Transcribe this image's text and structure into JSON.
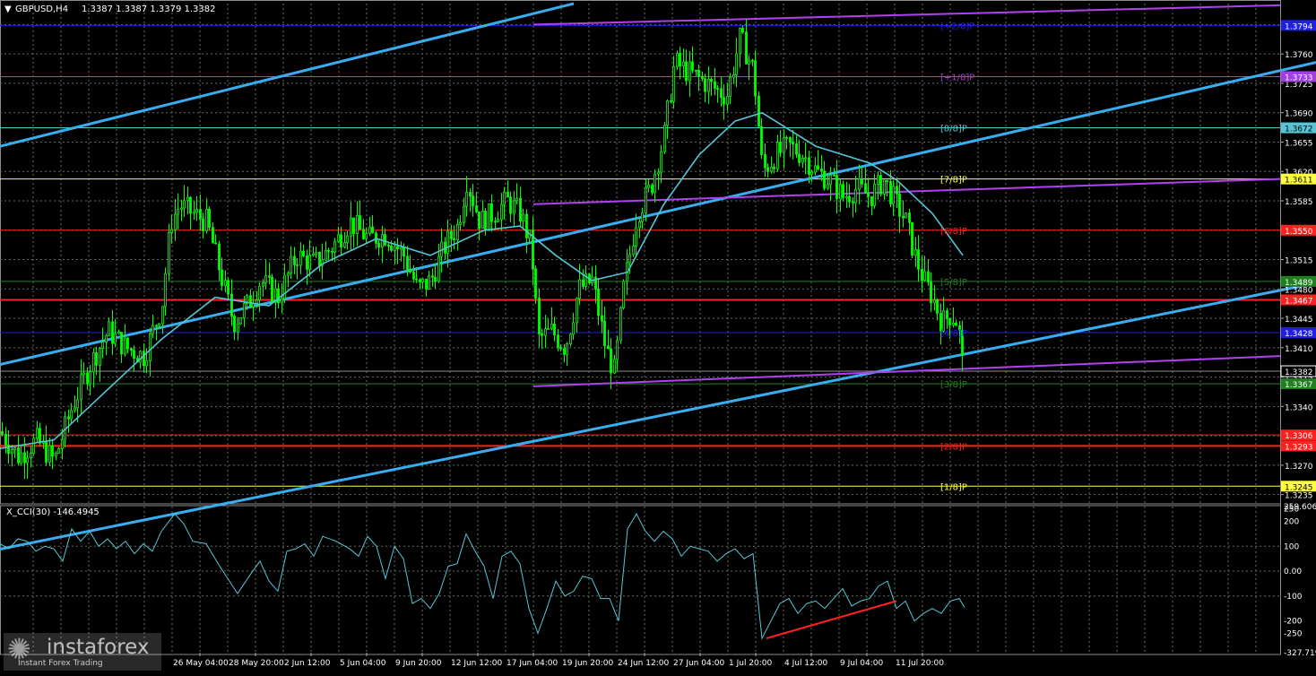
{
  "header": {
    "symbol": "GBPUSD,H4",
    "ohlc": "1.3387 1.3387 1.3379 1.3382"
  },
  "indicator": {
    "label": "X_CCI(30) -146.4945",
    "scale_labels": [
      "259.6065",
      "250",
      "200",
      "100",
      "0.00",
      "-100",
      "-200",
      "-250",
      "-327.7193"
    ]
  },
  "watermark": {
    "name": "instaforex",
    "tagline": "Instant Forex Trading"
  },
  "colors": {
    "background": "#000000",
    "grid": "#607060",
    "candles": "#00ff00",
    "moving_average": "#56c6d6",
    "trend_channel": "#38aef0",
    "pitchfork": "#b040f0",
    "cci_line": "#56c6d6",
    "divergence": "#ff2020"
  },
  "chart_data": [
    {
      "type": "candlestick",
      "symbol": "GBPUSD",
      "timeframe": "H4",
      "x_tick_labels": [
        "26 May 04:00",
        "28 May 20:00",
        "2 Jun 12:00",
        "5 Jun 04:00",
        "9 Jun 20:00",
        "12 Jun 12:00",
        "17 Jun 04:00",
        "19 Jun 20:00",
        "24 Jun 12:00",
        "27 Jun 04:00",
        "1 Jul 20:00",
        "4 Jul 12:00",
        "9 Jul 04:00",
        "11 Jul 20:00"
      ],
      "y_tick_labels": [
        "1.3795",
        "1.3760",
        "1.3725",
        "1.3690",
        "1.3655",
        "1.3620",
        "1.3585",
        "1.3550",
        "1.3515",
        "1.3480",
        "1.3445",
        "1.3410",
        "1.3375",
        "1.3340",
        "1.3305",
        "1.3270",
        "1.3235"
      ],
      "ylim": [
        1.3225,
        1.382
      ],
      "grid": true,
      "close_path": [
        [
          0,
          1.331
        ],
        [
          20,
          1.328
        ],
        [
          40,
          1.33
        ],
        [
          60,
          1.3275
        ],
        [
          80,
          1.334
        ],
        [
          100,
          1.339
        ],
        [
          120,
          1.343
        ],
        [
          140,
          1.341
        ],
        [
          160,
          1.34
        ],
        [
          180,
          1.346
        ],
        [
          190,
          1.356
        ],
        [
          200,
          1.358
        ],
        [
          215,
          1.357
        ],
        [
          230,
          1.356
        ],
        [
          245,
          1.35
        ],
        [
          260,
          1.344
        ],
        [
          275,
          1.346
        ],
        [
          290,
          1.349
        ],
        [
          310,
          1.347
        ],
        [
          330,
          1.352
        ],
        [
          350,
          1.351
        ],
        [
          370,
          1.353
        ],
        [
          390,
          1.356
        ],
        [
          410,
          1.354
        ],
        [
          430,
          1.3545
        ],
        [
          450,
          1.352
        ],
        [
          465,
          1.348
        ],
        [
          480,
          1.349
        ],
        [
          495,
          1.353
        ],
        [
          510,
          1.3555
        ],
        [
          520,
          1.361
        ],
        [
          535,
          1.356
        ],
        [
          550,
          1.357
        ],
        [
          565,
          1.3585
        ],
        [
          580,
          1.357
        ],
        [
          592,
          1.353
        ],
        [
          600,
          1.342
        ],
        [
          615,
          1.343
        ],
        [
          630,
          1.341
        ],
        [
          645,
          1.348
        ],
        [
          660,
          1.349
        ],
        [
          675,
          1.341
        ],
        [
          685,
          1.338
        ],
        [
          695,
          1.348
        ],
        [
          710,
          1.357
        ],
        [
          725,
          1.36
        ],
        [
          740,
          1.366
        ],
        [
          752,
          1.375
        ],
        [
          765,
          1.374
        ],
        [
          780,
          1.373
        ],
        [
          795,
          1.372
        ],
        [
          810,
          1.371
        ],
        [
          825,
          1.378
        ],
        [
          840,
          1.374
        ],
        [
          850,
          1.362
        ],
        [
          865,
          1.364
        ],
        [
          880,
          1.365
        ],
        [
          895,
          1.364
        ],
        [
          910,
          1.362
        ],
        [
          925,
          1.361
        ],
        [
          940,
          1.359
        ],
        [
          955,
          1.36
        ],
        [
          970,
          1.359
        ],
        [
          985,
          1.361
        ],
        [
          1000,
          1.358
        ],
        [
          1010,
          1.356
        ],
        [
          1020,
          1.352
        ],
        [
          1030,
          1.349
        ],
        [
          1040,
          1.347
        ],
        [
          1050,
          1.344
        ],
        [
          1060,
          1.345
        ],
        [
          1068,
          1.344
        ],
        [
          1074,
          1.3382
        ]
      ],
      "moving_average_path": [
        [
          0,
          1.329
        ],
        [
          60,
          1.33
        ],
        [
          120,
          1.336
        ],
        [
          180,
          1.342
        ],
        [
          240,
          1.347
        ],
        [
          300,
          1.346
        ],
        [
          360,
          1.351
        ],
        [
          420,
          1.354
        ],
        [
          480,
          1.352
        ],
        [
          540,
          1.355
        ],
        [
          580,
          1.3555
        ],
        [
          620,
          1.352
        ],
        [
          660,
          1.349
        ],
        [
          700,
          1.35
        ],
        [
          740,
          1.358
        ],
        [
          780,
          1.364
        ],
        [
          820,
          1.368
        ],
        [
          850,
          1.369
        ],
        [
          880,
          1.367
        ],
        [
          910,
          1.365
        ],
        [
          940,
          1.364
        ],
        [
          970,
          1.363
        ],
        [
          1000,
          1.361
        ],
        [
          1040,
          1.357
        ],
        [
          1074,
          1.352
        ]
      ],
      "trend_lines": [
        {
          "from": [
            0,
            1.365
          ],
          "to": [
            640,
            1.382
          ]
        },
        {
          "from": [
            0,
            1.339
          ],
          "to": [
            1468,
            1.375
          ]
        },
        {
          "from": [
            0,
            1.317
          ],
          "to": [
            1468,
            1.3487
          ]
        }
      ],
      "pitchfork_lines": [
        {
          "from": [
            595,
            1.3795
          ],
          "to": [
            1428,
            1.3818
          ]
        },
        {
          "from": [
            595,
            1.3581
          ],
          "to": [
            1428,
            1.3611
          ]
        },
        {
          "from": [
            595,
            1.3364
          ],
          "to": [
            1428,
            1.34
          ]
        }
      ],
      "horizontal_levels": [
        {
          "value": 1.3794,
          "label": "1.3794",
          "murrey": "[+2/8]P",
          "color": "#2020e0"
        },
        {
          "value": 1.3733,
          "label": "1.3733",
          "murrey": "[+1/8]P",
          "color": "#a040e0"
        },
        {
          "value": 1.3672,
          "label": "1.3672",
          "murrey": "[8/8]P",
          "color": "#56c6d6"
        },
        {
          "value": 1.3611,
          "label": "1.3611",
          "murrey": "[7/8]P",
          "color": "#ffff40"
        },
        {
          "value": 1.355,
          "label": "1.3550",
          "murrey": "[6/8]P",
          "color": "#ff2020"
        },
        {
          "value": 1.3489,
          "label": "1.3489",
          "murrey": "[5/8]P",
          "color": "#208020"
        },
        {
          "value": 1.3467,
          "label": "1.3467",
          "murrey": "",
          "color": "#ff2020"
        },
        {
          "value": 1.3428,
          "label": "1.3428",
          "murrey": "[4/8]P",
          "color": "#2020e0"
        },
        {
          "value": 1.3367,
          "label": "1.3367",
          "murrey": "[3/8]P",
          "color": "#208020"
        },
        {
          "value": 1.3306,
          "label": "1.3306",
          "murrey": "",
          "color": "#ff2020"
        },
        {
          "value": 1.3293,
          "label": "1.3293",
          "murrey": "[2/8]P",
          "color": "#ff2020"
        },
        {
          "value": 1.3245,
          "label": "1.3245",
          "murrey": "[1/8]P",
          "color": "#ffff40"
        }
      ],
      "current_price": 1.3382
    },
    {
      "type": "line",
      "name": "X_CCI(30)",
      "ylim": [
        -327.7193,
        259.6065
      ],
      "y_ticks": [
        259.6065,
        250,
        200,
        100,
        0,
        -100,
        -200,
        -250,
        -327.7193
      ],
      "series": [
        {
          "values": [
            [
              0,
              110
            ],
            [
              10,
              90
            ],
            [
              20,
              130
            ],
            [
              30,
              120
            ],
            [
              40,
              80
            ],
            [
              50,
              100
            ],
            [
              60,
              90
            ],
            [
              70,
              40
            ],
            [
              80,
              170
            ],
            [
              90,
              120
            ],
            [
              100,
              160
            ],
            [
              110,
              100
            ],
            [
              120,
              130
            ],
            [
              130,
              90
            ],
            [
              140,
              120
            ],
            [
              150,
              70
            ],
            [
              160,
              110
            ],
            [
              170,
              80
            ],
            [
              180,
              160
            ],
            [
              195,
              230
            ],
            [
              205,
              190
            ],
            [
              215,
              120
            ],
            [
              230,
              110
            ],
            [
              245,
              20
            ],
            [
              265,
              -90
            ],
            [
              280,
              -10
            ],
            [
              290,
              40
            ],
            [
              300,
              -40
            ],
            [
              310,
              -80
            ],
            [
              320,
              80
            ],
            [
              330,
              90
            ],
            [
              340,
              110
            ],
            [
              350,
              60
            ],
            [
              360,
              140
            ],
            [
              375,
              120
            ],
            [
              390,
              90
            ],
            [
              400,
              60
            ],
            [
              410,
              140
            ],
            [
              420,
              100
            ],
            [
              430,
              -30
            ],
            [
              440,
              100
            ],
            [
              450,
              50
            ],
            [
              460,
              -130
            ],
            [
              470,
              -110
            ],
            [
              480,
              -150
            ],
            [
              490,
              -90
            ],
            [
              500,
              20
            ],
            [
              510,
              30
            ],
            [
              520,
              150
            ],
            [
              530,
              80
            ],
            [
              540,
              20
            ],
            [
              550,
              -110
            ],
            [
              560,
              60
            ],
            [
              570,
              80
            ],
            [
              580,
              30
            ],
            [
              590,
              -150
            ],
            [
              600,
              -250
            ],
            [
              610,
              -150
            ],
            [
              620,
              -40
            ],
            [
              630,
              -100
            ],
            [
              640,
              -80
            ],
            [
              650,
              -20
            ],
            [
              660,
              -30
            ],
            [
              670,
              -110
            ],
            [
              680,
              -110
            ],
            [
              690,
              -200
            ],
            [
              700,
              170
            ],
            [
              710,
              230
            ],
            [
              720,
              160
            ],
            [
              730,
              120
            ],
            [
              740,
              160
            ],
            [
              750,
              130
            ],
            [
              760,
              60
            ],
            [
              770,
              100
            ],
            [
              780,
              90
            ],
            [
              790,
              80
            ],
            [
              800,
              40
            ],
            [
              810,
              70
            ],
            [
              820,
              90
            ],
            [
              830,
              50
            ],
            [
              840,
              70
            ],
            [
              850,
              -270
            ],
            [
              860,
              -200
            ],
            [
              870,
              -130
            ],
            [
              880,
              -110
            ],
            [
              890,
              -170
            ],
            [
              900,
              -130
            ],
            [
              910,
              -120
            ],
            [
              920,
              -150
            ],
            [
              930,
              -110
            ],
            [
              940,
              -70
            ],
            [
              950,
              -140
            ],
            [
              960,
              -120
            ],
            [
              970,
              -110
            ],
            [
              980,
              -60
            ],
            [
              990,
              -40
            ],
            [
              1000,
              -150
            ],
            [
              1010,
              -120
            ],
            [
              1020,
              -200
            ],
            [
              1030,
              -170
            ],
            [
              1040,
              -150
            ],
            [
              1050,
              -170
            ],
            [
              1060,
              -120
            ],
            [
              1070,
              -110
            ],
            [
              1076,
              -146
            ]
          ]
        }
      ],
      "divergence_line": {
        "from": [
          855,
          -270
        ],
        "to": [
          1000,
          -120
        ]
      }
    }
  ]
}
